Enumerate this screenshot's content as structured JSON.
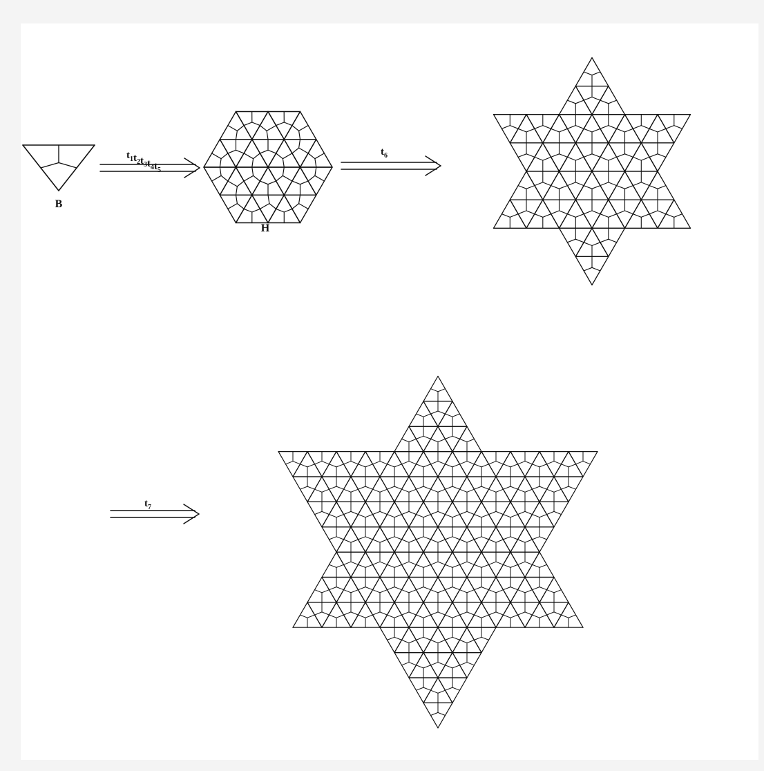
{
  "figure": {
    "labels": {
      "base": "B",
      "hexagon": "H"
    },
    "arrows": [
      {
        "main": "t",
        "subs": [
          "1",
          "2",
          "3",
          "4",
          "5"
        ]
      },
      {
        "main": "t",
        "subs": [
          "6"
        ]
      },
      {
        "main": "t",
        "subs": [
          "7"
        ]
      }
    ]
  },
  "colors": {
    "line": "#111111",
    "background": "#ffffff",
    "frame": "#f4f4f4"
  }
}
